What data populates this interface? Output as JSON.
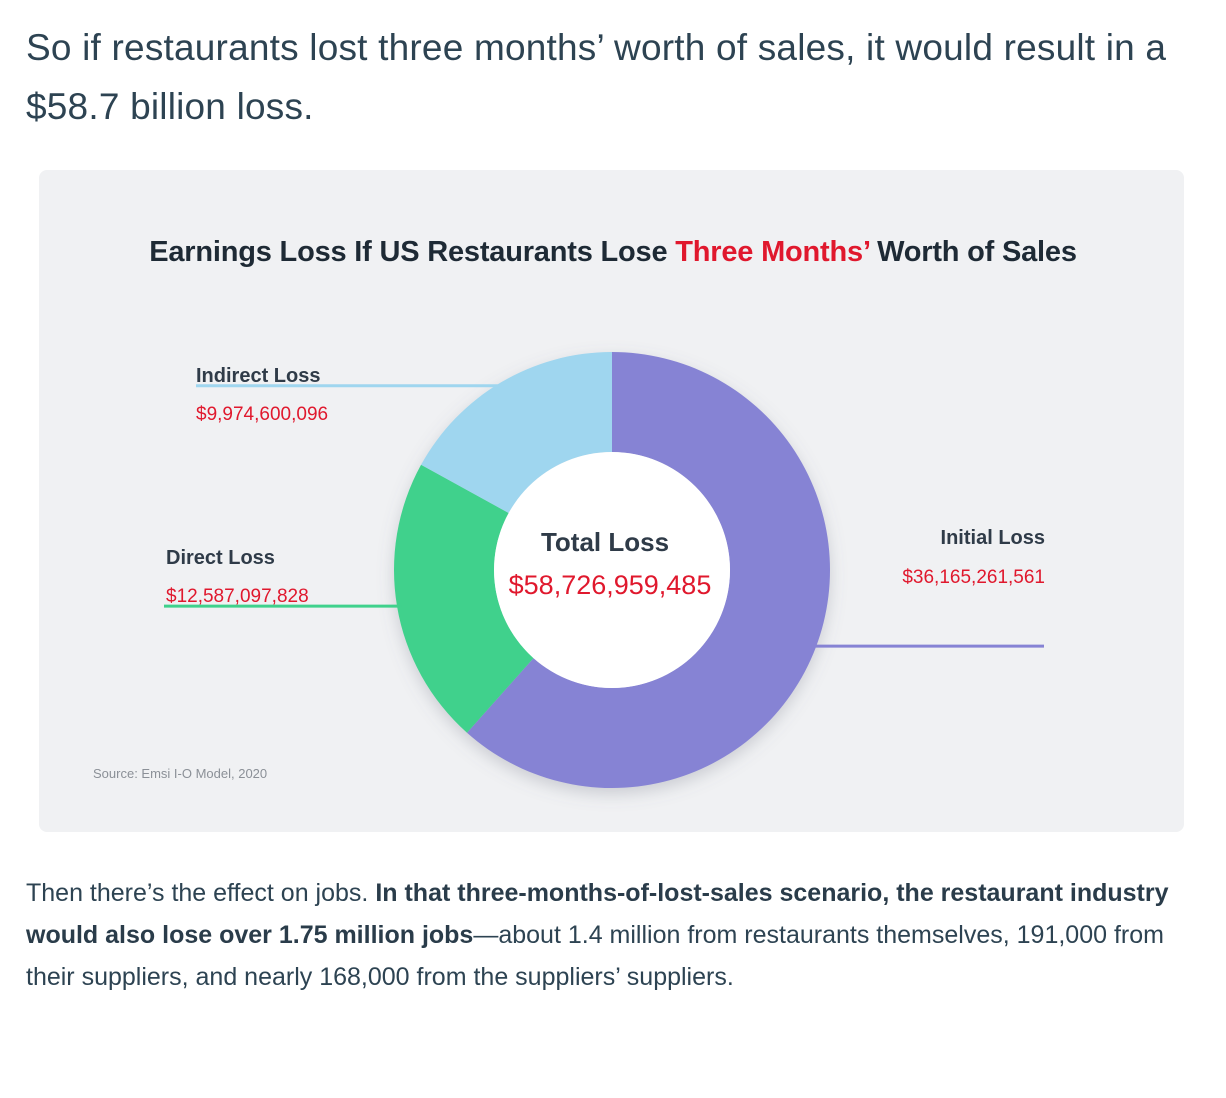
{
  "article": {
    "intro": "So if restaurants lost three months’ worth of sales, it would result in a $58.7 billion loss.",
    "outro_plain_1": "Then there’s the effect on jobs. ",
    "outro_bold": "In that three-months-of-lost-sales scenario, the restaurant industry would also lose over 1.75 million jobs",
    "outro_plain_2": "—about 1.4 million from restaurants themselves, 191,000 from their suppliers, and nearly 168,000 from the suppliers’ suppliers."
  },
  "chart_data": {
    "type": "pie",
    "donut": true,
    "title_part1": "Earnings Loss If US Restaurants Lose ",
    "title_accent": "Three Months’",
    "title_part2": " Worth of Sales",
    "center_label": "Total Loss",
    "center_value": "$58,726,959,485",
    "source": "Source: Emsi I-O Model, 2020",
    "slices": [
      {
        "name": "Initial Loss",
        "value": 36165261561,
        "label": "$36,165,261,561",
        "color": "#8683d4"
      },
      {
        "name": "Direct Loss",
        "value": 12587097828,
        "label": "$12,587,097,828",
        "color": "#3fd18c"
      },
      {
        "name": "Indirect Loss",
        "value": 9974600096,
        "label": "$9,974,600,096",
        "color": "#9fd6ef"
      }
    ]
  },
  "colors": {
    "accent_red": "#e0182d",
    "card_background": "#f0f1f3"
  }
}
